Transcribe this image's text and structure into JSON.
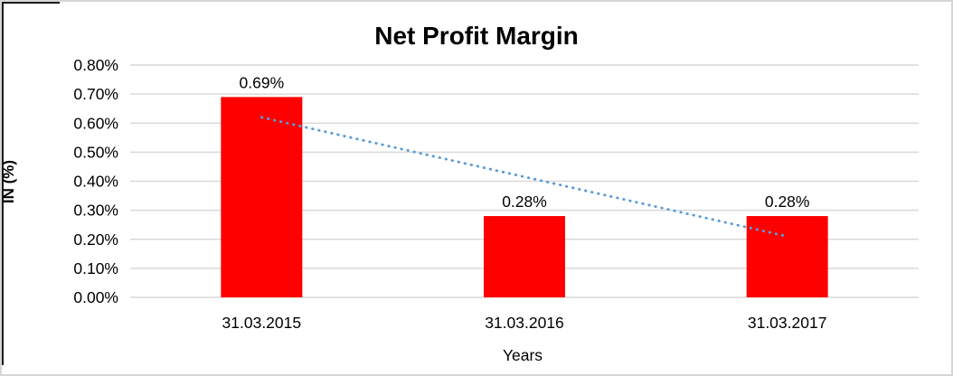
{
  "chart_data": {
    "type": "bar",
    "title": "Net Profit Margin",
    "xlabel": "Years",
    "ylabel": "IN (%)",
    "categories": [
      "31.03.2015",
      "31.03.2016",
      "31.03.2017"
    ],
    "values": [
      0.69,
      0.28,
      0.28
    ],
    "data_labels": [
      "0.69%",
      "0.28%",
      "0.28%"
    ],
    "unit": "percent",
    "ylim": [
      0.0,
      0.8
    ],
    "y_tick_step": 0.1,
    "y_tick_labels": [
      "0.00%",
      "0.10%",
      "0.20%",
      "0.30%",
      "0.40%",
      "0.50%",
      "0.60%",
      "0.70%",
      "0.80%"
    ],
    "grid": "horizontal",
    "legend_position": "none",
    "bar_color": "#ff0000",
    "gridline_color": "#d9d9d9",
    "text_color": "#000000",
    "trendline": {
      "type": "linear",
      "style": "dotted",
      "color": "#5b9bd5",
      "start_category_index": 0,
      "end_category_index": 2,
      "start_value": 0.62,
      "end_value": 0.21
    }
  }
}
